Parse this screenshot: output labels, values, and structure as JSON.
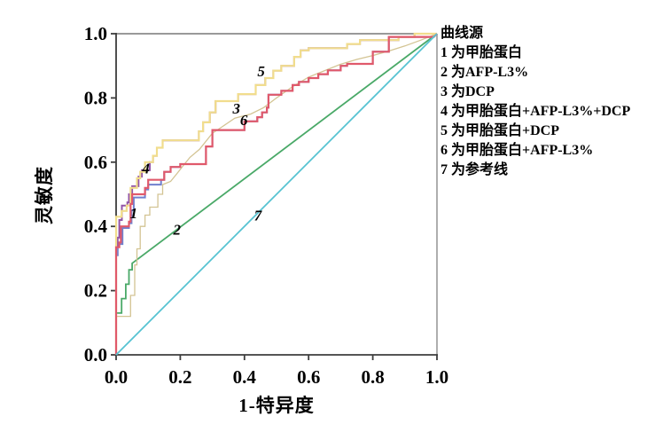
{
  "legend": {
    "title": "曲线源",
    "items": [
      "1 为甲胎蛋白",
      "2 为AFP-L3%",
      "3 为DCP",
      "4 为甲胎蛋白+AFP-L3%+DCP",
      "5 为甲胎蛋白+DCP",
      "6 为甲胎蛋白+AFP-L3%",
      "7 为参考线"
    ]
  },
  "chart_data": {
    "type": "line",
    "subtype": "roc-step-curves",
    "title": "",
    "xlabel": "1-特异度",
    "ylabel": "灵敏度",
    "xlim": [
      0,
      1
    ],
    "ylim": [
      0,
      1
    ],
    "x_ticks": [
      "0.0",
      "0.2",
      "0.4",
      "0.6",
      "0.8",
      "1.0"
    ],
    "y_ticks": [
      "0.0",
      "0.2",
      "0.4",
      "0.6",
      "0.8",
      "1.0"
    ],
    "grid": false,
    "legend_position": "right",
    "frame_color": "#999999",
    "axis_color": "#3d3d3d",
    "tick_label_color": "#000000",
    "curve_label_color": "#000000",
    "series": [
      {
        "id": 1,
        "name": "甲胎蛋白",
        "color": "#7080ce",
        "width": 2,
        "label": {
          "text": "1",
          "x": 0.055,
          "y": 0.425
        },
        "points": [
          [
            0,
            0
          ],
          [
            0,
            0.31
          ],
          [
            0.005,
            0.31
          ],
          [
            0.005,
            0.345
          ],
          [
            0.02,
            0.345
          ],
          [
            0.02,
            0.395
          ],
          [
            0.04,
            0.395
          ],
          [
            0.04,
            0.41
          ],
          [
            0.048,
            0.41
          ],
          [
            0.048,
            0.45
          ],
          [
            0.055,
            0.45
          ],
          [
            0.055,
            0.49
          ],
          [
            0.09,
            0.49
          ],
          [
            0.09,
            0.515
          ],
          [
            0.1,
            0.515
          ],
          [
            0.1,
            0.53
          ],
          [
            0.14,
            0.53
          ],
          [
            0.14,
            0.545
          ],
          [
            0.15,
            0.545
          ],
          [
            0.15,
            0.57
          ],
          [
            0.17,
            0.57
          ],
          [
            0.17,
            0.585
          ],
          [
            0.2,
            0.585
          ],
          [
            0.2,
            0.594
          ],
          [
            0.28,
            0.594
          ],
          [
            0.28,
            0.649
          ],
          [
            0.3,
            0.649
          ],
          [
            0.3,
            0.7
          ],
          [
            0.4,
            0.7
          ],
          [
            0.4,
            0.727
          ],
          [
            0.44,
            0.727
          ],
          [
            0.44,
            0.74
          ],
          [
            0.455,
            0.74
          ],
          [
            0.455,
            0.755
          ],
          [
            0.47,
            0.755
          ],
          [
            0.47,
            0.77
          ],
          [
            0.475,
            0.77
          ],
          [
            0.475,
            0.81
          ],
          [
            0.515,
            0.81
          ],
          [
            0.515,
            0.822
          ],
          [
            0.55,
            0.822
          ],
          [
            0.55,
            0.84
          ],
          [
            0.57,
            0.84
          ],
          [
            0.57,
            0.85
          ],
          [
            0.6,
            0.85
          ],
          [
            0.6,
            0.862
          ],
          [
            0.63,
            0.862
          ],
          [
            0.63,
            0.874
          ],
          [
            0.66,
            0.874
          ],
          [
            0.66,
            0.886
          ],
          [
            0.7,
            0.886
          ],
          [
            0.7,
            0.9
          ],
          [
            0.72,
            0.9
          ],
          [
            0.72,
            0.906
          ],
          [
            0.8,
            0.906
          ],
          [
            0.8,
            0.944
          ],
          [
            0.85,
            0.944
          ],
          [
            0.85,
            0.99
          ],
          [
            0.99,
            0.99
          ],
          [
            1,
            1
          ]
        ]
      },
      {
        "id": 2,
        "name": "AFP-L3%",
        "color": "#4aa968",
        "width": 1.8,
        "label": {
          "text": "2",
          "x": 0.19,
          "y": 0.375
        },
        "points": [
          [
            0,
            0
          ],
          [
            0,
            0.13
          ],
          [
            0.017,
            0.13
          ],
          [
            0.017,
            0.175
          ],
          [
            0.03,
            0.175
          ],
          [
            0.03,
            0.22
          ],
          [
            0.04,
            0.22
          ],
          [
            0.04,
            0.265
          ],
          [
            0.05,
            0.265
          ],
          [
            0.05,
            0.285
          ],
          [
            1,
            1
          ]
        ]
      },
      {
        "id": 3,
        "name": "DCP",
        "color": "#d3c493",
        "width": 1.3,
        "label": {
          "text": "3",
          "x": 0.375,
          "y": 0.752
        },
        "points": [
          [
            0,
            0
          ],
          [
            0,
            0.12
          ],
          [
            0.045,
            0.12
          ],
          [
            0.045,
            0.185
          ],
          [
            0.058,
            0.185
          ],
          [
            0.058,
            0.28
          ],
          [
            0.065,
            0.28
          ],
          [
            0.065,
            0.33
          ],
          [
            0.075,
            0.33
          ],
          [
            0.075,
            0.4
          ],
          [
            0.09,
            0.4
          ],
          [
            0.09,
            0.435
          ],
          [
            0.105,
            0.435
          ],
          [
            0.105,
            0.46
          ],
          [
            0.13,
            0.46
          ],
          [
            0.13,
            0.5
          ],
          [
            0.145,
            0.5
          ],
          [
            0.145,
            0.53
          ],
          [
            0.17,
            0.54
          ],
          [
            0.19,
            0.565
          ],
          [
            0.21,
            0.59
          ],
          [
            0.23,
            0.615
          ],
          [
            0.26,
            0.64
          ],
          [
            0.3,
            0.69
          ],
          [
            0.33,
            0.71
          ],
          [
            0.37,
            0.737
          ],
          [
            0.42,
            0.75
          ],
          [
            0.46,
            0.77
          ],
          [
            0.5,
            0.8
          ],
          [
            0.55,
            0.835
          ],
          [
            0.6,
            0.865
          ],
          [
            0.65,
            0.885
          ],
          [
            0.7,
            0.905
          ],
          [
            0.75,
            0.92
          ],
          [
            0.8,
            0.932
          ],
          [
            0.85,
            0.946
          ],
          [
            0.9,
            0.962
          ],
          [
            0.95,
            0.98
          ],
          [
            1,
            1
          ]
        ]
      },
      {
        "id": 4,
        "name": "甲胎蛋白+AFP-L3%+DCP",
        "color": "#9355a8",
        "width": 2,
        "label": {
          "text": "4",
          "x": 0.093,
          "y": 0.565
        },
        "points": [
          [
            0,
            0
          ],
          [
            0,
            0.34
          ],
          [
            0.005,
            0.34
          ],
          [
            0.005,
            0.365
          ],
          [
            0.01,
            0.365
          ],
          [
            0.01,
            0.42
          ],
          [
            0.018,
            0.42
          ],
          [
            0.018,
            0.465
          ],
          [
            0.035,
            0.465
          ],
          [
            0.035,
            0.475
          ],
          [
            0.04,
            0.475
          ],
          [
            0.04,
            0.5
          ],
          [
            0.05,
            0.5
          ],
          [
            0.05,
            0.525
          ],
          [
            0.07,
            0.525
          ],
          [
            0.07,
            0.555
          ],
          [
            0.08,
            0.555
          ],
          [
            0.08,
            0.575
          ],
          [
            0.105,
            0.575
          ],
          [
            0.105,
            0.6
          ],
          [
            0.115,
            0.6
          ],
          [
            0.115,
            0.62
          ],
          [
            0.127,
            0.62
          ],
          [
            0.127,
            0.645
          ],
          [
            0.145,
            0.645
          ],
          [
            0.145,
            0.668
          ],
          [
            0.258,
            0.668
          ],
          [
            0.258,
            0.696
          ],
          [
            0.271,
            0.696
          ],
          [
            0.271,
            0.724
          ],
          [
            0.292,
            0.724
          ],
          [
            0.292,
            0.755
          ],
          [
            0.31,
            0.755
          ],
          [
            0.31,
            0.79
          ],
          [
            0.38,
            0.79
          ],
          [
            0.38,
            0.812
          ],
          [
            0.435,
            0.812
          ],
          [
            0.435,
            0.84
          ],
          [
            0.465,
            0.84
          ],
          [
            0.465,
            0.862
          ],
          [
            0.49,
            0.862
          ],
          [
            0.49,
            0.885
          ],
          [
            0.515,
            0.885
          ],
          [
            0.515,
            0.9
          ],
          [
            0.555,
            0.9
          ],
          [
            0.555,
            0.928
          ],
          [
            0.575,
            0.928
          ],
          [
            0.575,
            0.948
          ],
          [
            0.6,
            0.948
          ],
          [
            0.6,
            0.955
          ],
          [
            0.72,
            0.955
          ],
          [
            0.72,
            0.968
          ],
          [
            0.76,
            0.968
          ],
          [
            0.76,
            0.98
          ],
          [
            0.88,
            0.98
          ],
          [
            0.88,
            0.99
          ],
          [
            0.93,
            0.99
          ],
          [
            0.93,
            1
          ],
          [
            1,
            1
          ]
        ]
      },
      {
        "id": 5,
        "name": "甲胎蛋白+DCP",
        "color": "#f1dd8d",
        "width": 2.2,
        "label": {
          "text": "5",
          "x": 0.452,
          "y": 0.868
        },
        "points": [
          [
            0,
            0
          ],
          [
            0,
            0.43
          ],
          [
            0.017,
            0.43
          ],
          [
            0.017,
            0.448
          ],
          [
            0.033,
            0.448
          ],
          [
            0.033,
            0.465
          ],
          [
            0.045,
            0.465
          ],
          [
            0.045,
            0.52
          ],
          [
            0.065,
            0.52
          ],
          [
            0.065,
            0.55
          ],
          [
            0.075,
            0.55
          ],
          [
            0.075,
            0.57
          ],
          [
            0.09,
            0.57
          ],
          [
            0.09,
            0.6
          ],
          [
            0.115,
            0.6
          ],
          [
            0.115,
            0.62
          ],
          [
            0.127,
            0.62
          ],
          [
            0.127,
            0.645
          ],
          [
            0.145,
            0.645
          ],
          [
            0.145,
            0.668
          ],
          [
            0.258,
            0.668
          ],
          [
            0.258,
            0.696
          ],
          [
            0.271,
            0.696
          ],
          [
            0.271,
            0.724
          ],
          [
            0.292,
            0.724
          ],
          [
            0.292,
            0.755
          ],
          [
            0.31,
            0.755
          ],
          [
            0.31,
            0.79
          ],
          [
            0.38,
            0.79
          ],
          [
            0.38,
            0.812
          ],
          [
            0.435,
            0.812
          ],
          [
            0.435,
            0.84
          ],
          [
            0.465,
            0.84
          ],
          [
            0.465,
            0.862
          ],
          [
            0.49,
            0.862
          ],
          [
            0.49,
            0.885
          ],
          [
            0.515,
            0.885
          ],
          [
            0.515,
            0.9
          ],
          [
            0.555,
            0.9
          ],
          [
            0.555,
            0.928
          ],
          [
            0.575,
            0.928
          ],
          [
            0.575,
            0.948
          ],
          [
            0.6,
            0.948
          ],
          [
            0.6,
            0.955
          ],
          [
            0.72,
            0.955
          ],
          [
            0.72,
            0.968
          ],
          [
            0.76,
            0.968
          ],
          [
            0.76,
            0.98
          ],
          [
            0.88,
            0.98
          ],
          [
            0.88,
            0.99
          ],
          [
            0.93,
            0.99
          ],
          [
            0.93,
            1
          ],
          [
            1,
            1
          ]
        ]
      },
      {
        "id": 6,
        "name": "甲胎蛋白+AFP-L3%",
        "color": "#e0596b",
        "width": 2.2,
        "label": {
          "text": "6",
          "x": 0.398,
          "y": 0.716
        },
        "points": [
          [
            0,
            0
          ],
          [
            0,
            0.335
          ],
          [
            0.01,
            0.335
          ],
          [
            0.01,
            0.35
          ],
          [
            0.015,
            0.35
          ],
          [
            0.015,
            0.4
          ],
          [
            0.04,
            0.4
          ],
          [
            0.04,
            0.415
          ],
          [
            0.045,
            0.415
          ],
          [
            0.045,
            0.47
          ],
          [
            0.05,
            0.47
          ],
          [
            0.05,
            0.5
          ],
          [
            0.09,
            0.5
          ],
          [
            0.09,
            0.52
          ],
          [
            0.1,
            0.52
          ],
          [
            0.1,
            0.545
          ],
          [
            0.15,
            0.545
          ],
          [
            0.15,
            0.57
          ],
          [
            0.17,
            0.57
          ],
          [
            0.17,
            0.585
          ],
          [
            0.2,
            0.585
          ],
          [
            0.2,
            0.594
          ],
          [
            0.28,
            0.594
          ],
          [
            0.28,
            0.649
          ],
          [
            0.3,
            0.649
          ],
          [
            0.3,
            0.7
          ],
          [
            0.4,
            0.7
          ],
          [
            0.4,
            0.727
          ],
          [
            0.44,
            0.727
          ],
          [
            0.44,
            0.74
          ],
          [
            0.455,
            0.74
          ],
          [
            0.455,
            0.755
          ],
          [
            0.47,
            0.755
          ],
          [
            0.47,
            0.77
          ],
          [
            0.475,
            0.77
          ],
          [
            0.475,
            0.81
          ],
          [
            0.515,
            0.81
          ],
          [
            0.515,
            0.822
          ],
          [
            0.55,
            0.822
          ],
          [
            0.55,
            0.84
          ],
          [
            0.57,
            0.84
          ],
          [
            0.57,
            0.85
          ],
          [
            0.6,
            0.85
          ],
          [
            0.6,
            0.862
          ],
          [
            0.63,
            0.862
          ],
          [
            0.63,
            0.874
          ],
          [
            0.66,
            0.874
          ],
          [
            0.66,
            0.886
          ],
          [
            0.7,
            0.886
          ],
          [
            0.7,
            0.9
          ],
          [
            0.72,
            0.9
          ],
          [
            0.72,
            0.906
          ],
          [
            0.8,
            0.906
          ],
          [
            0.8,
            0.944
          ],
          [
            0.85,
            0.944
          ],
          [
            0.85,
            0.99
          ],
          [
            0.99,
            0.99
          ],
          [
            1,
            1
          ]
        ]
      },
      {
        "id": 7,
        "name": "参考线",
        "color": "#57c3d2",
        "width": 1.8,
        "label": {
          "text": "7",
          "x": 0.442,
          "y": 0.418
        },
        "points": [
          [
            0,
            0
          ],
          [
            1,
            1
          ]
        ]
      }
    ]
  }
}
